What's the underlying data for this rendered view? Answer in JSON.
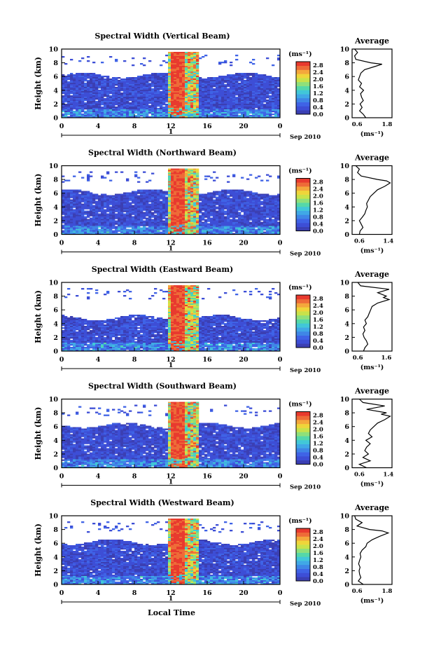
{
  "figure": {
    "xlabel": "Local Time",
    "date_label": "Sep 2010",
    "day_label": "1"
  },
  "colors": {
    "scale": [
      "#3b3fb3",
      "#3d4ed6",
      "#3f63e6",
      "#3f86e6",
      "#40a8e6",
      "#41c7d8",
      "#55d8a8",
      "#8fe07a",
      "#c9e24a",
      "#efd53a",
      "#f4a73c",
      "#ee6b38",
      "#e83a2e"
    ]
  },
  "chart_data": [
    {
      "type": "heatmap",
      "title": "Spectral Width (Vertical Beam)",
      "ylabel": "Height (km)",
      "x_ticks": [
        "0",
        "4",
        "8",
        "12",
        "16",
        "20",
        "0"
      ],
      "y_ticks": [
        "0",
        "2",
        "4",
        "6",
        "8",
        "10"
      ],
      "xlim": [
        0,
        24
      ],
      "ylim": [
        0,
        10
      ],
      "colorbar": {
        "unit": "(ms⁻¹)",
        "ticks": [
          "0.0",
          "0.4",
          "0.8",
          "1.2",
          "1.6",
          "2.0",
          "2.4",
          "2.8"
        ],
        "range": [
          0,
          3.0
        ]
      },
      "profile": {
        "title": "Average",
        "xlabel": "(ms⁻¹)",
        "x_ticks": [
          "0.6",
          "1.8"
        ],
        "xlim": [
          0.4,
          2.0
        ],
        "heights": [
          0,
          0.5,
          1,
          1.5,
          2,
          2.5,
          3,
          3.5,
          4,
          4.5,
          5,
          5.5,
          6,
          6.5,
          7,
          7.5,
          7.8,
          8,
          8.5,
          9,
          9.5,
          10
        ],
        "values": [
          0.95,
          0.85,
          0.7,
          0.8,
          0.72,
          0.85,
          0.78,
          0.74,
          0.86,
          0.7,
          0.78,
          0.65,
          0.7,
          0.75,
          0.9,
          1.35,
          1.6,
          1.15,
          0.55,
          0.5,
          0.62,
          0.5
        ]
      }
    },
    {
      "type": "heatmap",
      "title": "Spectral Width (Northward Beam)",
      "ylabel": "Height (km)",
      "x_ticks": [
        "0",
        "4",
        "8",
        "12",
        "16",
        "20",
        "0"
      ],
      "y_ticks": [
        "0",
        "2",
        "4",
        "6",
        "8",
        "10"
      ],
      "xlim": [
        0,
        24
      ],
      "ylim": [
        0,
        10
      ],
      "colorbar": {
        "unit": "(ms⁻¹)",
        "ticks": [
          "0.0",
          "0.4",
          "0.8",
          "1.2",
          "1.6",
          "2.0",
          "2.4",
          "2.8"
        ],
        "range": [
          0,
          3.0
        ]
      },
      "profile": {
        "title": "Average",
        "xlabel": "(ms⁻¹)",
        "x_ticks": [
          "0.6",
          "1.4"
        ],
        "xlim": [
          0.4,
          1.5
        ],
        "heights": [
          0,
          0.5,
          1,
          1.5,
          2,
          2.5,
          3,
          3.5,
          4,
          4.5,
          5,
          5.5,
          6,
          6.5,
          7,
          7.5,
          7.8,
          8,
          8.5,
          9,
          9.5,
          10
        ],
        "values": [
          0.6,
          0.62,
          0.7,
          0.65,
          0.6,
          0.68,
          0.75,
          0.78,
          0.82,
          0.8,
          0.85,
          0.9,
          1.0,
          1.1,
          1.3,
          1.45,
          1.35,
          1.1,
          0.65,
          0.55,
          0.6,
          0.5
        ]
      }
    },
    {
      "type": "heatmap",
      "title": "Spectral Width (Eastward Beam)",
      "ylabel": "Height (km)",
      "x_ticks": [
        "0",
        "4",
        "8",
        "12",
        "16",
        "20",
        "0"
      ],
      "y_ticks": [
        "0",
        "2",
        "4",
        "6",
        "8",
        "10"
      ],
      "xlim": [
        0,
        24
      ],
      "ylim": [
        0,
        10
      ],
      "colorbar": {
        "unit": "(ms⁻¹)",
        "ticks": [
          "0.0",
          "0.4",
          "0.8",
          "1.2",
          "1.6",
          "2.0",
          "2.4",
          "2.8"
        ],
        "range": [
          0,
          3.0
        ]
      },
      "profile": {
        "title": "Average",
        "xlabel": "(ms⁻¹)",
        "x_ticks": [
          "0.6",
          "1.6"
        ],
        "xlim": [
          0.4,
          1.8
        ],
        "heights": [
          0,
          0.5,
          1,
          1.5,
          2,
          2.5,
          3,
          3.5,
          4,
          4.5,
          5,
          5.5,
          6,
          6.5,
          7,
          7.5,
          7.8,
          8,
          8.5,
          9,
          9.5,
          10
        ],
        "values": [
          0.8,
          0.85,
          0.95,
          0.9,
          0.82,
          0.78,
          0.85,
          0.8,
          0.9,
          0.85,
          0.95,
          1.0,
          1.05,
          1.1,
          1.3,
          1.7,
          1.5,
          1.6,
          1.3,
          1.7,
          0.7,
          0.6
        ]
      }
    },
    {
      "type": "heatmap",
      "title": "Spectral Width (Southward Beam)",
      "ylabel": "Height (km)",
      "x_ticks": [
        "0",
        "4",
        "8",
        "12",
        "16",
        "20",
        "0"
      ],
      "y_ticks": [
        "0",
        "2",
        "4",
        "6",
        "8",
        "10"
      ],
      "xlim": [
        0,
        24
      ],
      "ylim": [
        0,
        10
      ],
      "colorbar": {
        "unit": "(ms⁻¹)",
        "ticks": [
          "0.0",
          "0.4",
          "0.8",
          "1.2",
          "1.6",
          "2.0",
          "2.4",
          "2.8"
        ],
        "range": [
          0,
          3.0
        ]
      },
      "profile": {
        "title": "Average",
        "xlabel": "(ms⁻¹)",
        "x_ticks": [
          "0.6",
          "1.4"
        ],
        "xlim": [
          0.4,
          1.5
        ],
        "heights": [
          0,
          0.5,
          1,
          1.5,
          2,
          2.5,
          3,
          3.5,
          4,
          4.5,
          5,
          5.5,
          6,
          6.5,
          7,
          7.5,
          7.8,
          8,
          8.5,
          9,
          9.5,
          10
        ],
        "values": [
          0.8,
          0.6,
          0.9,
          0.7,
          0.85,
          0.75,
          0.8,
          0.9,
          0.78,
          0.95,
          0.85,
          0.9,
          1.0,
          1.1,
          1.3,
          1.45,
          1.2,
          1.35,
          0.8,
          1.3,
          0.7,
          0.6
        ]
      }
    },
    {
      "type": "heatmap",
      "title": "Spectral Width (Westward Beam)",
      "ylabel": "Height (km)",
      "x_ticks": [
        "0",
        "4",
        "8",
        "12",
        "16",
        "20",
        "0"
      ],
      "y_ticks": [
        "0",
        "2",
        "4",
        "6",
        "8",
        "10"
      ],
      "xlim": [
        0,
        24
      ],
      "ylim": [
        0,
        10
      ],
      "colorbar": {
        "unit": "(ms⁻¹)",
        "ticks": [
          "0.0",
          "0.4",
          "0.8",
          "1.2",
          "1.6",
          "2.0",
          "2.4",
          "2.8"
        ],
        "range": [
          0,
          3.0
        ]
      },
      "profile": {
        "title": "Average",
        "xlabel": "(ms⁻¹)",
        "x_ticks": [
          "0.6",
          "1.8"
        ],
        "xlim": [
          0.4,
          2.0
        ],
        "heights": [
          0,
          0.5,
          1,
          1.5,
          2,
          2.5,
          3,
          3.5,
          4,
          4.5,
          5,
          5.5,
          6,
          6.5,
          7,
          7.5,
          7.8,
          8,
          8.5,
          9,
          9.5,
          10
        ],
        "values": [
          0.85,
          0.65,
          0.75,
          0.7,
          0.68,
          0.72,
          0.66,
          0.7,
          0.75,
          0.72,
          0.8,
          0.95,
          1.0,
          1.2,
          1.5,
          1.85,
          1.6,
          1.1,
          0.6,
          0.8,
          0.55,
          0.5
        ]
      }
    }
  ]
}
